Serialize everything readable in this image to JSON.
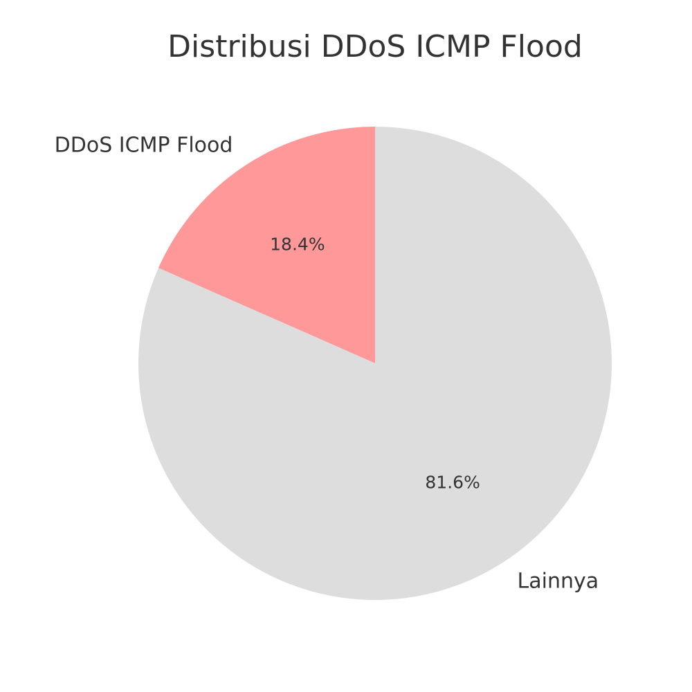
{
  "chart_data": {
    "type": "pie",
    "title": "Distribusi DDoS ICMP Flood",
    "start_angle": "top (12 o'clock)",
    "direction": "counterclockwise",
    "slices": [
      {
        "label": "DDoS ICMP Flood",
        "value": 18.4,
        "pct_label": "18.4%",
        "color": "#ff9999"
      },
      {
        "label": "Lainnya",
        "value": 81.6,
        "pct_label": "81.6%",
        "color": "#dddddd"
      }
    ]
  }
}
